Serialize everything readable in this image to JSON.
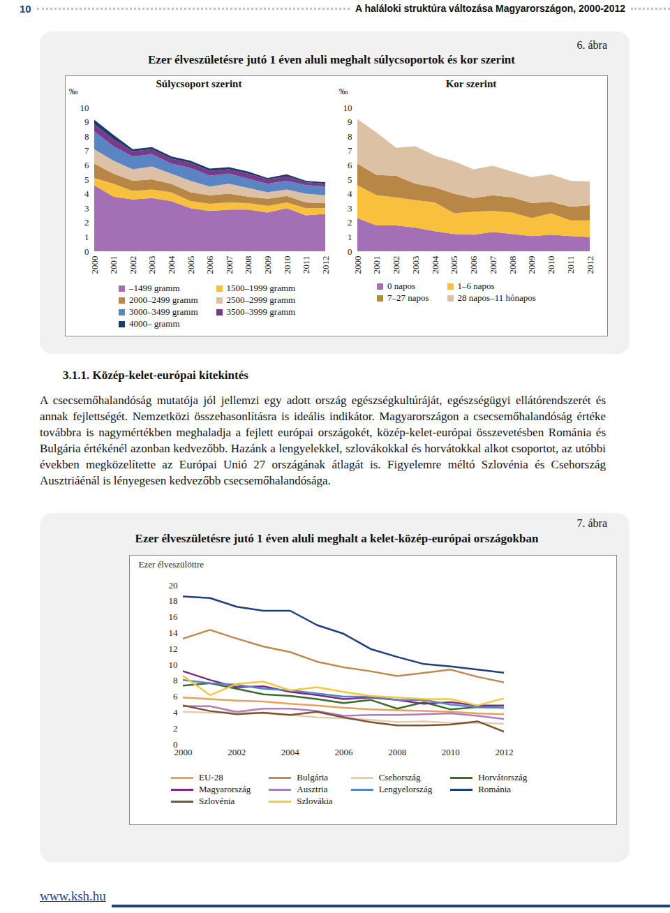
{
  "page": {
    "page_number": "10",
    "running_title": "A haláloki struktúra változása Magyarországon, 2000-2012",
    "figure6": {
      "title": "Ezer élveszületésre jutó 1 éven aluli meghalt súlycsoportok és kor szerint",
      "label": "6. ábra"
    },
    "section_heading": "3.1.1. Közép-kelet-európai kitekintés",
    "paragraph": "A csecsemőhalandóság mutatója jól jellemzi egy adott ország egészségkultúráját, egészségügyi ellátórendszerét és annak fejlettségét. Nemzetközi összehasonlításra is ideális indikátor. Magyarországon a csecsemőhalandóság értéke továbbra is nagymértékben meghaladja a fejlett európai országokét, közép-kelet-európai összevetésben Románia és Bulgária értékénél azonban kedvezőbb. Hazánk a lengyelekkel, szlovákokkal és horvátokkal alkot csoportot, az utóbbi években megközelítette az Európai Unió 27 országának átlagát is. Figyelemre méltó Szlovénia és Csehország Ausztriáénál is lényegesen kedvezőbb csecsemőhalandósága.",
    "figure7": {
      "label": "7. ábra"
    },
    "footer": "www.ksh.hu"
  },
  "chart_data": [
    {
      "type": "area",
      "stacked": true,
      "title": "Súlycsoport szerint",
      "ylabel": "‰",
      "x": [
        2000,
        2001,
        2002,
        2003,
        2004,
        2005,
        2006,
        2007,
        2008,
        2009,
        2010,
        2011,
        2012
      ],
      "xlim": [
        2000,
        2012
      ],
      "xticks": [
        2000,
        2001,
        2002,
        2003,
        2004,
        2005,
        2006,
        2007,
        2008,
        2009,
        2010,
        2011,
        2012
      ],
      "ylim": [
        0,
        10
      ],
      "yticks": [
        0,
        1,
        2,
        3,
        4,
        5,
        6,
        7,
        8,
        9,
        10
      ],
      "series": [
        {
          "name": "–1499 gramm",
          "color": "#a36fb5",
          "values": [
            4.6,
            3.8,
            3.6,
            3.7,
            3.5,
            3.0,
            2.8,
            2.9,
            2.9,
            2.7,
            3.0,
            2.5,
            2.6
          ]
        },
        {
          "name": "1500–1999 gramm",
          "color": "#f9c03e",
          "values": [
            0.5,
            0.9,
            0.6,
            0.6,
            0.6,
            0.5,
            0.5,
            0.5,
            0.45,
            0.45,
            0.4,
            0.5,
            0.4
          ]
        },
        {
          "name": "2000–2499 gramm",
          "color": "#b88645",
          "values": [
            1.0,
            0.7,
            0.7,
            0.7,
            0.6,
            0.6,
            0.6,
            0.6,
            0.45,
            0.5,
            0.45,
            0.4,
            0.35
          ]
        },
        {
          "name": "2500–2999 gramm",
          "color": "#ddc1a4",
          "values": [
            1.0,
            0.9,
            0.8,
            0.9,
            0.7,
            0.8,
            0.6,
            0.7,
            0.6,
            0.45,
            0.45,
            0.6,
            0.55
          ]
        },
        {
          "name": "3000–3499 gramm",
          "color": "#5b84c4",
          "values": [
            1.25,
            1.0,
            0.9,
            0.85,
            0.7,
            0.9,
            0.75,
            0.7,
            0.65,
            0.6,
            0.6,
            0.6,
            0.6
          ]
        },
        {
          "name": "3500–3999 gramm",
          "color": "#7a3a8a",
          "values": [
            0.5,
            0.5,
            0.35,
            0.35,
            0.35,
            0.35,
            0.35,
            0.3,
            0.35,
            0.3,
            0.3,
            0.2,
            0.2
          ]
        },
        {
          "name": "4000– gramm",
          "color": "#1b3a6b",
          "values": [
            0.3,
            0.3,
            0.15,
            0.15,
            0.15,
            0.15,
            0.15,
            0.15,
            0.15,
            0.1,
            0.15,
            0.1,
            0.1
          ]
        }
      ]
    },
    {
      "type": "area",
      "stacked": true,
      "title": "Kor szerint",
      "ylabel": "‰",
      "x": [
        2000,
        2001,
        2002,
        2003,
        2004,
        2005,
        2006,
        2007,
        2008,
        2009,
        2010,
        2011,
        2012
      ],
      "xlim": [
        2000,
        2012
      ],
      "xticks": [
        2000,
        2001,
        2002,
        2003,
        2004,
        2005,
        2006,
        2007,
        2008,
        2009,
        2010,
        2011,
        2012
      ],
      "ylim": [
        0,
        10
      ],
      "yticks": [
        0,
        1,
        2,
        3,
        4,
        5,
        6,
        7,
        8,
        9,
        10
      ],
      "series": [
        {
          "name": "0 napos",
          "color": "#a36fb5",
          "values": [
            2.3,
            1.8,
            1.8,
            1.65,
            1.4,
            1.2,
            1.15,
            1.35,
            1.2,
            1.05,
            1.15,
            1.05,
            1.0
          ]
        },
        {
          "name": "1–6 napos",
          "color": "#f9c03e",
          "values": [
            2.3,
            2.1,
            1.95,
            1.9,
            2.0,
            1.45,
            1.6,
            1.45,
            1.5,
            1.25,
            1.5,
            1.1,
            1.15
          ]
        },
        {
          "name": "7–27 napos",
          "color": "#b88645",
          "values": [
            1.5,
            1.4,
            1.5,
            1.15,
            1.05,
            1.35,
            0.95,
            1.1,
            1.05,
            1.05,
            0.8,
            0.95,
            1.05
          ]
        },
        {
          "name": "28 napos–11 hónapos",
          "color": "#ddc1a4",
          "values": [
            3.1,
            2.95,
            1.95,
            2.6,
            2.2,
            2.25,
            2.0,
            2.05,
            1.8,
            1.8,
            1.9,
            1.8,
            1.65
          ]
        }
      ]
    },
    {
      "type": "line",
      "title": "Ezer élveszületésre jutó 1 éven aluli meghalt a kelet-közép-európai országokban",
      "ylabel": "Ezer élveszülöttre",
      "x": [
        2000,
        2001,
        2002,
        2003,
        2004,
        2005,
        2006,
        2007,
        2008,
        2009,
        2010,
        2011,
        2012
      ],
      "xlim": [
        2000,
        2012
      ],
      "xticks": [
        2000,
        2002,
        2004,
        2006,
        2008,
        2010,
        2012
      ],
      "ylim": [
        0,
        20
      ],
      "yticks": [
        0,
        2,
        4,
        6,
        8,
        10,
        12,
        14,
        16,
        18,
        20
      ],
      "series": [
        {
          "name": "EU-28",
          "color": "#e8a05a",
          "values": [
            5.9,
            5.7,
            5.5,
            5.4,
            5.1,
            4.9,
            4.6,
            4.4,
            4.3,
            4.2,
            4.1,
            3.9,
            3.8
          ]
        },
        {
          "name": "Bulgária",
          "color": "#c08a4e",
          "values": [
            13.3,
            14.4,
            13.3,
            12.3,
            11.6,
            10.4,
            9.7,
            9.2,
            8.6,
            9.0,
            9.4,
            8.5,
            7.8
          ]
        },
        {
          "name": "Csehország",
          "color": "#e6ccb0",
          "values": [
            4.1,
            4.0,
            4.1,
            3.9,
            3.7,
            3.4,
            3.3,
            3.1,
            2.8,
            2.9,
            2.7,
            2.7,
            2.6
          ]
        },
        {
          "name": "Horvátország",
          "color": "#3d6b2e",
          "values": [
            7.4,
            7.7,
            7.0,
            6.3,
            6.1,
            5.7,
            5.2,
            5.6,
            4.5,
            5.3,
            4.4,
            4.7,
            4.6
          ]
        },
        {
          "name": "Magyarország",
          "color": "#7b2c7e",
          "values": [
            9.2,
            8.1,
            7.2,
            7.3,
            6.6,
            6.2,
            5.7,
            5.9,
            5.6,
            5.1,
            5.3,
            4.9,
            4.9
          ]
        },
        {
          "name": "Ausztria",
          "color": "#b07cc0",
          "values": [
            4.8,
            4.8,
            4.1,
            4.5,
            4.5,
            4.2,
            3.6,
            3.7,
            3.7,
            3.8,
            3.9,
            3.6,
            3.2
          ]
        },
        {
          "name": "Lengyelország",
          "color": "#5b84c4",
          "values": [
            8.1,
            7.7,
            7.5,
            7.0,
            6.8,
            6.4,
            6.0,
            6.0,
            5.6,
            5.6,
            5.0,
            4.7,
            4.6
          ]
        },
        {
          "name": "Románia",
          "color": "#1f3f7a",
          "values": [
            18.6,
            18.4,
            17.3,
            16.8,
            16.8,
            15.0,
            13.9,
            12.0,
            11.0,
            10.1,
            9.8,
            9.4,
            9.0
          ]
        },
        {
          "name": "Szlovénia",
          "color": "#7a5530",
          "values": [
            4.9,
            4.2,
            3.8,
            4.0,
            3.7,
            4.1,
            3.4,
            2.8,
            2.4,
            2.4,
            2.5,
            2.9,
            1.6
          ]
        },
        {
          "name": "Szlovákia",
          "color": "#f5c842",
          "values": [
            8.6,
            6.2,
            7.6,
            7.9,
            6.8,
            7.2,
            6.6,
            6.1,
            5.9,
            5.7,
            5.7,
            4.9,
            5.8
          ]
        }
      ]
    }
  ]
}
